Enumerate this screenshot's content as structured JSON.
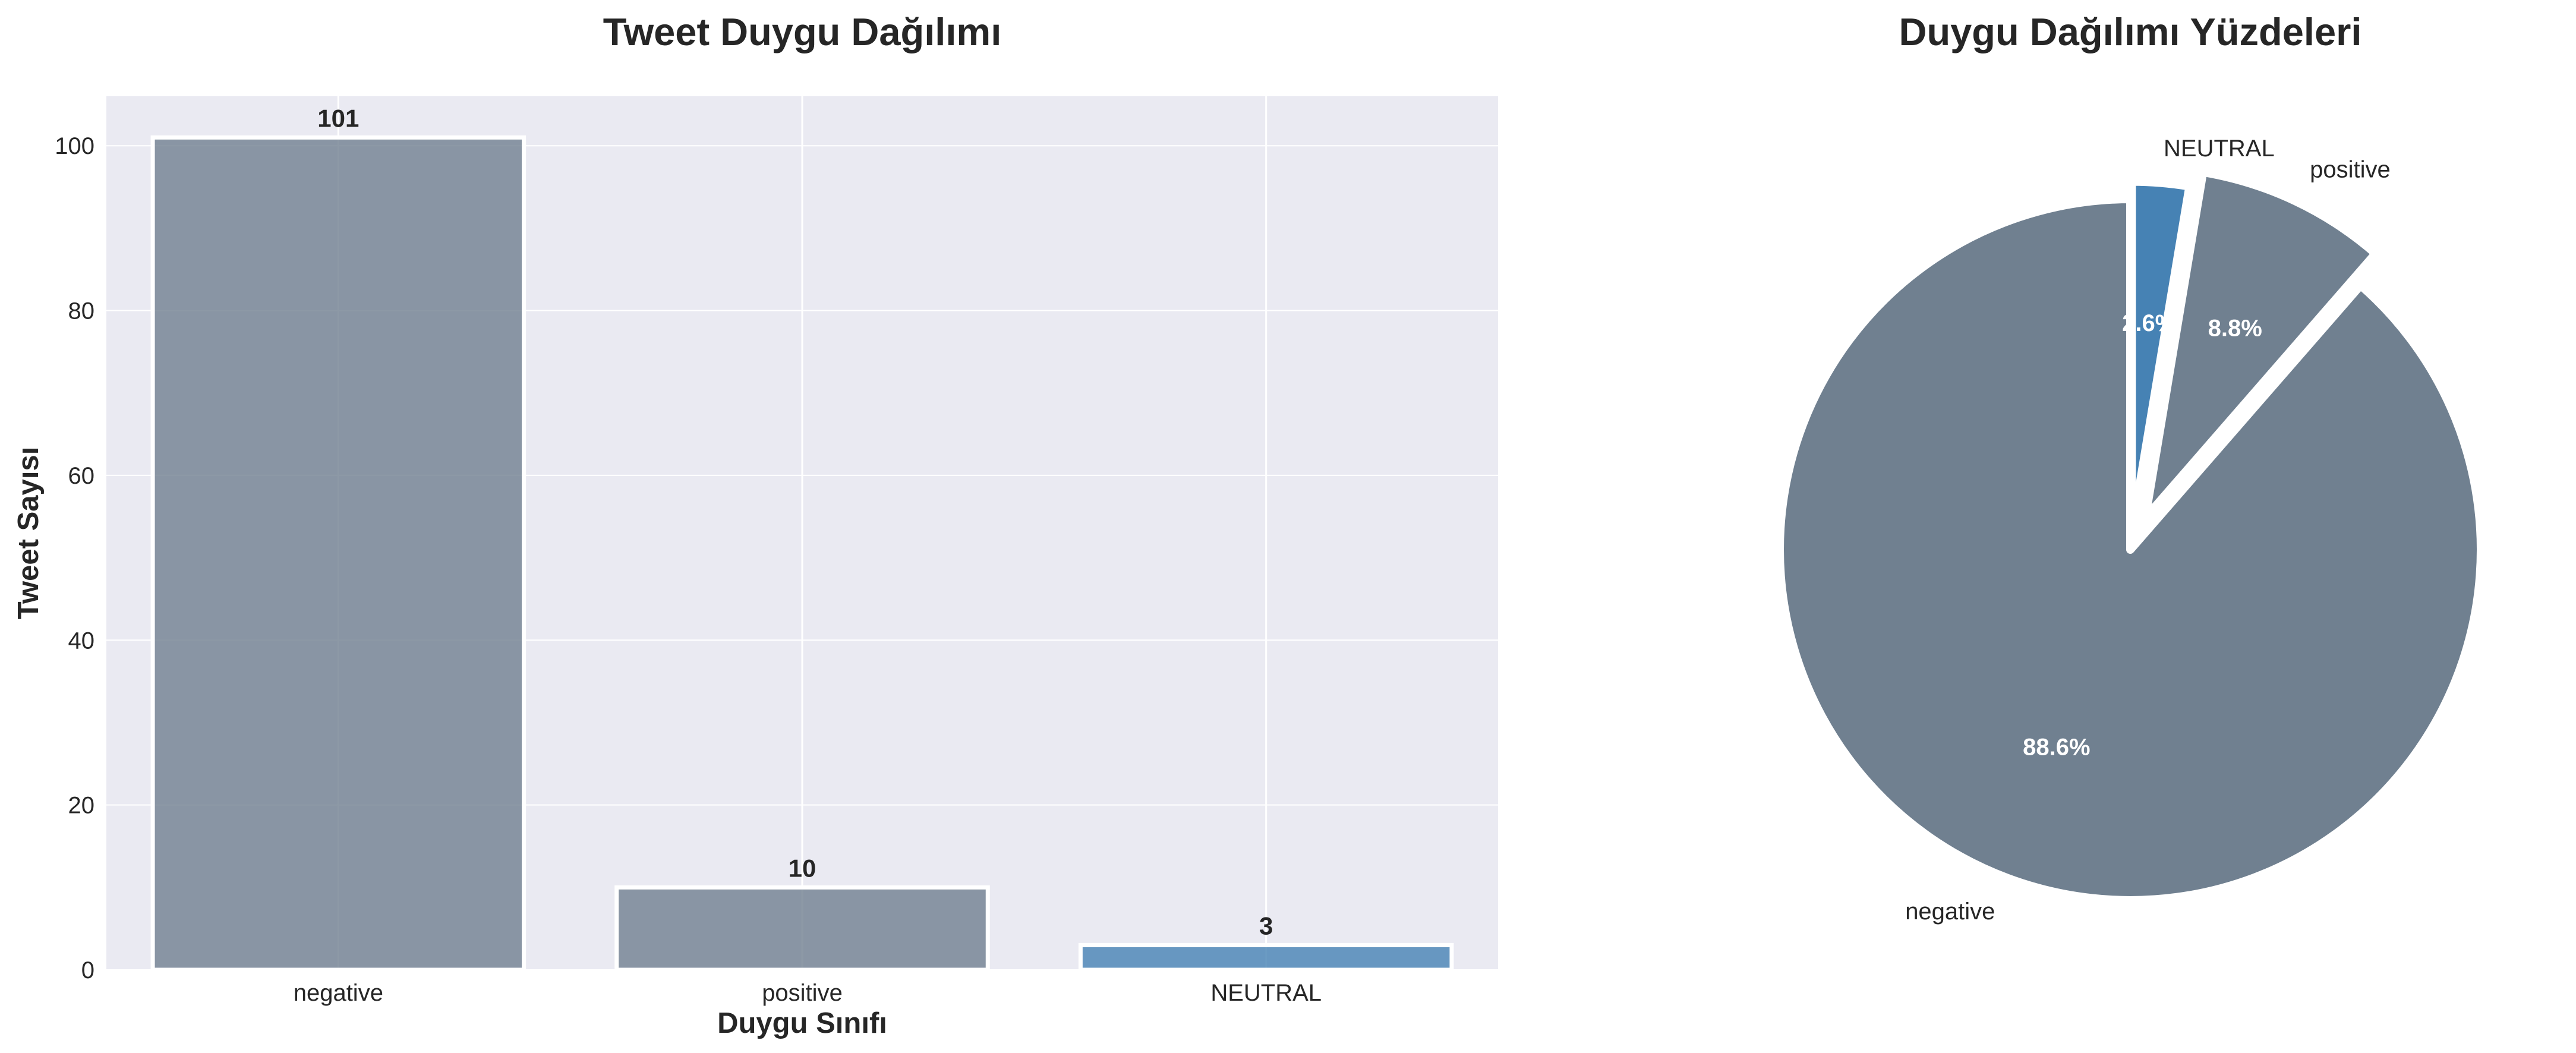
{
  "chart_data": [
    {
      "type": "bar",
      "title": "Tweet Duygu Dağılımı",
      "xlabel": "Duygu Sınıfı",
      "ylabel": "Tweet Sayısı",
      "categories": [
        "negative",
        "positive",
        "NEUTRAL"
      ],
      "values": [
        101,
        10,
        3
      ],
      "colors": [
        "#708090",
        "#708090",
        "#4682B4"
      ],
      "ylim": [
        0,
        106
      ],
      "yticks": [
        0,
        20,
        40,
        60,
        80,
        100
      ],
      "grid": true
    },
    {
      "type": "pie",
      "title": "Duygu Dağılımı Yüzdeleri",
      "labels": [
        "NEUTRAL",
        "positive",
        "negative"
      ],
      "values": [
        3,
        10,
        101
      ],
      "percent_labels": [
        "2.6%",
        "8.8%",
        "88.6%"
      ],
      "colors": [
        "#4682B4",
        "#708090",
        "#708090"
      ]
    }
  ]
}
